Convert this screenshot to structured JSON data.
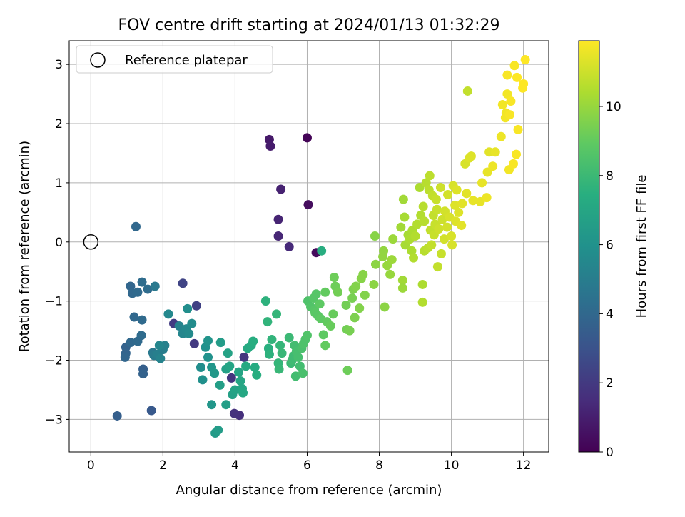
{
  "chart_data": {
    "type": "scatter",
    "title": "FOV centre drift starting at 2024/01/13 01:32:29",
    "xlabel": "Angular distance from reference (arcmin)",
    "ylabel": "Rotation from reference (arcmin)",
    "xlim": [
      -0.6,
      12.7
    ],
    "ylim": [
      -3.55,
      3.4
    ],
    "xticks": [
      0,
      2,
      4,
      6,
      8,
      10,
      12
    ],
    "yticks": [
      -3,
      -2,
      -1,
      0,
      1,
      2,
      3
    ],
    "grid": true,
    "legend": {
      "placement": "top-left",
      "entries": [
        "Reference platepar"
      ]
    },
    "reference_point": {
      "x": 0,
      "y": 0
    },
    "colorbar": {
      "label": "Hours from first FF file",
      "colormap": "viridis",
      "range": [
        0,
        11.9
      ],
      "ticks": [
        0,
        2,
        4,
        6,
        8,
        10
      ]
    },
    "points": [
      {
        "x": 4.95,
        "y": 1.73,
        "c": 0.8
      },
      {
        "x": 4.98,
        "y": 1.62,
        "c": 0.9
      },
      {
        "x": 6.0,
        "y": 1.76,
        "c": 0.1
      },
      {
        "x": 5.27,
        "y": 0.89,
        "c": 1.1
      },
      {
        "x": 6.03,
        "y": 0.63,
        "c": 0.4
      },
      {
        "x": 5.2,
        "y": 0.38,
        "c": 1.2
      },
      {
        "x": 5.2,
        "y": 0.1,
        "c": 1.3
      },
      {
        "x": 5.5,
        "y": -0.08,
        "c": 1.4
      },
      {
        "x": 6.25,
        "y": -0.18,
        "c": 0.3
      },
      {
        "x": 4.12,
        "y": -2.93,
        "c": 1.6
      },
      {
        "x": 3.98,
        "y": -2.9,
        "c": 1.7
      },
      {
        "x": 3.9,
        "y": -2.3,
        "c": 1.8
      },
      {
        "x": 4.25,
        "y": -1.95,
        "c": 1.9
      },
      {
        "x": 2.87,
        "y": -1.72,
        "c": 2.0
      },
      {
        "x": 2.3,
        "y": -1.38,
        "c": 2.1
      },
      {
        "x": 2.55,
        "y": -0.7,
        "c": 2.4
      },
      {
        "x": 2.93,
        "y": -1.08,
        "c": 2.3
      },
      {
        "x": 1.25,
        "y": 0.26,
        "c": 4.0
      },
      {
        "x": 0.73,
        "y": -2.94,
        "c": 3.6
      },
      {
        "x": 1.68,
        "y": -2.85,
        "c": 3.3
      },
      {
        "x": 1.1,
        "y": -0.75,
        "c": 3.9
      },
      {
        "x": 1.15,
        "y": -0.87,
        "c": 4.0
      },
      {
        "x": 1.3,
        "y": -0.85,
        "c": 4.1
      },
      {
        "x": 1.42,
        "y": -0.68,
        "c": 4.2
      },
      {
        "x": 1.58,
        "y": -0.8,
        "c": 4.2
      },
      {
        "x": 1.78,
        "y": -0.75,
        "c": 4.8
      },
      {
        "x": 1.2,
        "y": -1.27,
        "c": 4.0
      },
      {
        "x": 1.42,
        "y": -1.32,
        "c": 4.1
      },
      {
        "x": 1.4,
        "y": -1.58,
        "c": 4.2
      },
      {
        "x": 0.97,
        "y": -1.78,
        "c": 3.7
      },
      {
        "x": 0.97,
        "y": -1.88,
        "c": 3.8
      },
      {
        "x": 0.95,
        "y": -1.95,
        "c": 3.9
      },
      {
        "x": 1.1,
        "y": -1.7,
        "c": 4.0
      },
      {
        "x": 1.3,
        "y": -1.68,
        "c": 4.1
      },
      {
        "x": 1.45,
        "y": -2.15,
        "c": 3.6
      },
      {
        "x": 1.45,
        "y": -2.23,
        "c": 3.7
      },
      {
        "x": 1.72,
        "y": -1.87,
        "c": 4.8
      },
      {
        "x": 1.75,
        "y": -1.92,
        "c": 4.9
      },
      {
        "x": 1.85,
        "y": -1.9,
        "c": 5.1
      },
      {
        "x": 1.93,
        "y": -1.97,
        "c": 5.3
      },
      {
        "x": 2.0,
        "y": -1.82,
        "c": 5.0
      },
      {
        "x": 2.05,
        "y": -1.75,
        "c": 5.2
      },
      {
        "x": 1.9,
        "y": -1.75,
        "c": 5.4
      },
      {
        "x": 2.15,
        "y": -1.22,
        "c": 5.5
      },
      {
        "x": 2.45,
        "y": -1.42,
        "c": 5.3
      },
      {
        "x": 2.55,
        "y": -1.55,
        "c": 5.4
      },
      {
        "x": 2.65,
        "y": -1.47,
        "c": 5.5
      },
      {
        "x": 2.72,
        "y": -1.55,
        "c": 5.6
      },
      {
        "x": 2.8,
        "y": -1.38,
        "c": 5.7
      },
      {
        "x": 2.68,
        "y": -1.13,
        "c": 5.8
      },
      {
        "x": 3.05,
        "y": -2.12,
        "c": 5.8
      },
      {
        "x": 3.1,
        "y": -2.33,
        "c": 5.9
      },
      {
        "x": 3.18,
        "y": -1.78,
        "c": 6.0
      },
      {
        "x": 3.25,
        "y": -1.67,
        "c": 6.1
      },
      {
        "x": 3.25,
        "y": -1.95,
        "c": 6.0
      },
      {
        "x": 3.35,
        "y": -2.12,
        "c": 6.2
      },
      {
        "x": 3.43,
        "y": -2.22,
        "c": 6.3
      },
      {
        "x": 3.35,
        "y": -2.75,
        "c": 6.2
      },
      {
        "x": 3.45,
        "y": -3.23,
        "c": 6.4
      },
      {
        "x": 3.53,
        "y": -3.18,
        "c": 6.5
      },
      {
        "x": 3.58,
        "y": -2.42,
        "c": 6.6
      },
      {
        "x": 3.6,
        "y": -1.7,
        "c": 6.5
      },
      {
        "x": 3.75,
        "y": -2.15,
        "c": 6.7
      },
      {
        "x": 3.8,
        "y": -1.88,
        "c": 6.8
      },
      {
        "x": 3.75,
        "y": -2.75,
        "c": 6.6
      },
      {
        "x": 3.85,
        "y": -2.1,
        "c": 6.9
      },
      {
        "x": 3.93,
        "y": -2.58,
        "c": 6.7
      },
      {
        "x": 4.0,
        "y": -2.5,
        "c": 6.8
      },
      {
        "x": 4.1,
        "y": -2.2,
        "c": 6.9
      },
      {
        "x": 4.15,
        "y": -2.35,
        "c": 7.0
      },
      {
        "x": 4.2,
        "y": -2.48,
        "c": 7.0
      },
      {
        "x": 4.22,
        "y": -2.55,
        "c": 7.1
      },
      {
        "x": 4.3,
        "y": -2.1,
        "c": 7.2
      },
      {
        "x": 4.35,
        "y": -1.8,
        "c": 7.2
      },
      {
        "x": 4.45,
        "y": -1.75,
        "c": 7.3
      },
      {
        "x": 4.5,
        "y": -1.68,
        "c": 7.4
      },
      {
        "x": 4.55,
        "y": -2.12,
        "c": 7.3
      },
      {
        "x": 4.6,
        "y": -2.25,
        "c": 7.4
      },
      {
        "x": 4.85,
        "y": -1.0,
        "c": 7.6
      },
      {
        "x": 4.9,
        "y": -1.35,
        "c": 7.7
      },
      {
        "x": 4.93,
        "y": -1.8,
        "c": 7.5
      },
      {
        "x": 4.95,
        "y": -1.9,
        "c": 7.6
      },
      {
        "x": 5.02,
        "y": -1.65,
        "c": 7.7
      },
      {
        "x": 5.15,
        "y": -1.22,
        "c": 7.8
      },
      {
        "x": 5.2,
        "y": -2.05,
        "c": 7.8
      },
      {
        "x": 5.22,
        "y": -2.15,
        "c": 7.9
      },
      {
        "x": 5.25,
        "y": -1.75,
        "c": 7.8
      },
      {
        "x": 5.3,
        "y": -1.88,
        "c": 7.9
      },
      {
        "x": 5.5,
        "y": -1.62,
        "c": 8.0
      },
      {
        "x": 5.55,
        "y": -2.05,
        "c": 8.0
      },
      {
        "x": 5.58,
        "y": -2.0,
        "c": 8.1
      },
      {
        "x": 5.62,
        "y": -1.93,
        "c": 8.1
      },
      {
        "x": 5.65,
        "y": -1.75,
        "c": 8.2
      },
      {
        "x": 5.68,
        "y": -2.27,
        "c": 8.2
      },
      {
        "x": 5.7,
        "y": -1.85,
        "c": 8.3
      },
      {
        "x": 5.75,
        "y": -1.95,
        "c": 8.3
      },
      {
        "x": 5.8,
        "y": -2.1,
        "c": 8.2
      },
      {
        "x": 5.85,
        "y": -1.8,
        "c": 8.4
      },
      {
        "x": 5.88,
        "y": -2.22,
        "c": 8.4
      },
      {
        "x": 5.9,
        "y": -1.72,
        "c": 8.5
      },
      {
        "x": 5.95,
        "y": -1.65,
        "c": 8.5
      },
      {
        "x": 6.0,
        "y": -1.58,
        "c": 8.6
      },
      {
        "x": 6.02,
        "y": -1.0,
        "c": 8.5
      },
      {
        "x": 6.1,
        "y": -1.1,
        "c": 8.6
      },
      {
        "x": 6.18,
        "y": -0.95,
        "c": 8.7
      },
      {
        "x": 6.2,
        "y": -1.15,
        "c": 8.7
      },
      {
        "x": 6.22,
        "y": -1.2,
        "c": 8.8
      },
      {
        "x": 6.25,
        "y": -0.88,
        "c": 8.7
      },
      {
        "x": 6.3,
        "y": -1.25,
        "c": 8.8
      },
      {
        "x": 6.35,
        "y": -1.05,
        "c": 8.9
      },
      {
        "x": 6.38,
        "y": -1.3,
        "c": 8.9
      },
      {
        "x": 6.4,
        "y": -0.15,
        "c": 7.4
      },
      {
        "x": 6.45,
        "y": -1.57,
        "c": 8.9
      },
      {
        "x": 6.5,
        "y": -1.75,
        "c": 9.0
      },
      {
        "x": 6.5,
        "y": -0.85,
        "c": 9.0
      },
      {
        "x": 6.55,
        "y": -1.35,
        "c": 9.0
      },
      {
        "x": 6.65,
        "y": -1.42,
        "c": 9.1
      },
      {
        "x": 6.72,
        "y": -1.22,
        "c": 9.1
      },
      {
        "x": 6.75,
        "y": -0.6,
        "c": 9.2
      },
      {
        "x": 6.78,
        "y": -0.75,
        "c": 9.2
      },
      {
        "x": 6.85,
        "y": -0.85,
        "c": 9.3
      },
      {
        "x": 7.08,
        "y": -1.07,
        "c": 9.3
      },
      {
        "x": 7.1,
        "y": -1.48,
        "c": 9.3
      },
      {
        "x": 7.12,
        "y": -2.17,
        "c": 9.2
      },
      {
        "x": 7.18,
        "y": -1.5,
        "c": 9.4
      },
      {
        "x": 7.25,
        "y": -0.95,
        "c": 9.4
      },
      {
        "x": 7.28,
        "y": -0.8,
        "c": 9.5
      },
      {
        "x": 7.32,
        "y": -1.28,
        "c": 9.5
      },
      {
        "x": 7.35,
        "y": -0.75,
        "c": 9.6
      },
      {
        "x": 7.45,
        "y": -1.12,
        "c": 9.6
      },
      {
        "x": 7.5,
        "y": -0.62,
        "c": 9.7
      },
      {
        "x": 7.55,
        "y": -0.55,
        "c": 9.7
      },
      {
        "x": 7.6,
        "y": -0.9,
        "c": 9.6
      },
      {
        "x": 7.85,
        "y": -0.72,
        "c": 9.8
      },
      {
        "x": 7.9,
        "y": -0.38,
        "c": 9.8
      },
      {
        "x": 7.88,
        "y": 0.1,
        "c": 9.7
      },
      {
        "x": 8.1,
        "y": -0.25,
        "c": 9.9
      },
      {
        "x": 8.12,
        "y": -0.15,
        "c": 9.9
      },
      {
        "x": 8.15,
        "y": -1.1,
        "c": 9.8
      },
      {
        "x": 8.22,
        "y": -0.4,
        "c": 10.0
      },
      {
        "x": 8.3,
        "y": -0.55,
        "c": 10.0
      },
      {
        "x": 8.35,
        "y": -0.3,
        "c": 10.1
      },
      {
        "x": 8.38,
        "y": 0.05,
        "c": 10.1
      },
      {
        "x": 8.6,
        "y": 0.25,
        "c": 10.2
      },
      {
        "x": 8.65,
        "y": -0.65,
        "c": 10.2
      },
      {
        "x": 8.65,
        "y": -0.78,
        "c": 10.1
      },
      {
        "x": 8.67,
        "y": 0.72,
        "c": 10.2
      },
      {
        "x": 8.7,
        "y": 0.42,
        "c": 10.3
      },
      {
        "x": 8.72,
        "y": -0.05,
        "c": 10.3
      },
      {
        "x": 8.8,
        "y": 0.12,
        "c": 10.3
      },
      {
        "x": 8.85,
        "y": 0.05,
        "c": 10.4
      },
      {
        "x": 8.9,
        "y": -0.15,
        "c": 10.4
      },
      {
        "x": 8.92,
        "y": 0.2,
        "c": 10.4
      },
      {
        "x": 8.95,
        "y": -0.27,
        "c": 10.5
      },
      {
        "x": 9.0,
        "y": 0.1,
        "c": 10.5
      },
      {
        "x": 9.05,
        "y": 0.3,
        "c": 10.5
      },
      {
        "x": 9.12,
        "y": 0.92,
        "c": 10.4
      },
      {
        "x": 9.15,
        "y": 0.45,
        "c": 10.5
      },
      {
        "x": 9.2,
        "y": -0.72,
        "c": 10.4
      },
      {
        "x": 9.2,
        "y": -1.02,
        "c": 10.5
      },
      {
        "x": 9.22,
        "y": 0.6,
        "c": 10.6
      },
      {
        "x": 9.25,
        "y": 0.35,
        "c": 10.6
      },
      {
        "x": 9.25,
        "y": -0.15,
        "c": 10.6
      },
      {
        "x": 9.3,
        "y": 1.0,
        "c": 10.6
      },
      {
        "x": 9.35,
        "y": -0.1,
        "c": 10.7
      },
      {
        "x": 9.38,
        "y": 0.88,
        "c": 10.7
      },
      {
        "x": 9.4,
        "y": 1.12,
        "c": 10.7
      },
      {
        "x": 9.42,
        "y": 0.2,
        "c": 10.8
      },
      {
        "x": 9.45,
        "y": -0.05,
        "c": 10.8
      },
      {
        "x": 9.48,
        "y": 0.78,
        "c": 10.8
      },
      {
        "x": 9.5,
        "y": 0.45,
        "c": 10.8
      },
      {
        "x": 9.52,
        "y": 0.12,
        "c": 10.9
      },
      {
        "x": 9.55,
        "y": 0.3,
        "c": 10.9
      },
      {
        "x": 9.58,
        "y": 0.72,
        "c": 10.9
      },
      {
        "x": 9.6,
        "y": 0.55,
        "c": 10.9
      },
      {
        "x": 9.62,
        "y": -0.42,
        "c": 10.8
      },
      {
        "x": 9.65,
        "y": 0.22,
        "c": 11.0
      },
      {
        "x": 9.7,
        "y": 0.92,
        "c": 11.0
      },
      {
        "x": 9.72,
        "y": -0.2,
        "c": 10.9
      },
      {
        "x": 9.75,
        "y": 0.38,
        "c": 11.0
      },
      {
        "x": 9.8,
        "y": 0.05,
        "c": 11.1
      },
      {
        "x": 9.82,
        "y": 0.52,
        "c": 11.1
      },
      {
        "x": 9.88,
        "y": 0.25,
        "c": 11.1
      },
      {
        "x": 9.9,
        "y": 0.8,
        "c": 11.1
      },
      {
        "x": 9.95,
        "y": 0.42,
        "c": 11.2
      },
      {
        "x": 10.0,
        "y": 0.1,
        "c": 11.2
      },
      {
        "x": 10.02,
        "y": -0.05,
        "c": 11.2
      },
      {
        "x": 10.05,
        "y": 0.95,
        "c": 11.2
      },
      {
        "x": 10.1,
        "y": 0.62,
        "c": 11.3
      },
      {
        "x": 10.12,
        "y": 0.35,
        "c": 11.3
      },
      {
        "x": 10.15,
        "y": 0.88,
        "c": 11.3
      },
      {
        "x": 10.2,
        "y": 0.5,
        "c": 11.3
      },
      {
        "x": 10.28,
        "y": 0.28,
        "c": 11.4
      },
      {
        "x": 10.3,
        "y": 0.65,
        "c": 11.4
      },
      {
        "x": 10.38,
        "y": 1.32,
        "c": 11.2
      },
      {
        "x": 10.42,
        "y": 0.82,
        "c": 11.4
      },
      {
        "x": 10.45,
        "y": 2.55,
        "c": 10.8
      },
      {
        "x": 10.5,
        "y": 1.42,
        "c": 11.3
      },
      {
        "x": 10.55,
        "y": 1.45,
        "c": 11.3
      },
      {
        "x": 10.6,
        "y": 0.7,
        "c": 11.5
      },
      {
        "x": 10.8,
        "y": 0.68,
        "c": 11.5
      },
      {
        "x": 10.85,
        "y": 1.0,
        "c": 11.5
      },
      {
        "x": 10.98,
        "y": 0.75,
        "c": 11.6
      },
      {
        "x": 11.0,
        "y": 1.18,
        "c": 11.5
      },
      {
        "x": 11.05,
        "y": 1.52,
        "c": 11.4
      },
      {
        "x": 11.15,
        "y": 1.28,
        "c": 11.6
      },
      {
        "x": 11.22,
        "y": 1.52,
        "c": 11.5
      },
      {
        "x": 11.38,
        "y": 1.78,
        "c": 11.6
      },
      {
        "x": 11.42,
        "y": 2.32,
        "c": 11.7
      },
      {
        "x": 11.5,
        "y": 2.1,
        "c": 11.7
      },
      {
        "x": 11.52,
        "y": 2.18,
        "c": 11.7
      },
      {
        "x": 11.55,
        "y": 2.5,
        "c": 11.7
      },
      {
        "x": 11.55,
        "y": 2.82,
        "c": 11.8
      },
      {
        "x": 11.6,
        "y": 1.22,
        "c": 11.7
      },
      {
        "x": 11.62,
        "y": 2.15,
        "c": 11.8
      },
      {
        "x": 11.65,
        "y": 2.38,
        "c": 11.8
      },
      {
        "x": 11.72,
        "y": 1.32,
        "c": 11.8
      },
      {
        "x": 11.75,
        "y": 2.98,
        "c": 11.8
      },
      {
        "x": 11.8,
        "y": 1.48,
        "c": 11.8
      },
      {
        "x": 11.82,
        "y": 2.78,
        "c": 11.9
      },
      {
        "x": 11.85,
        "y": 1.9,
        "c": 11.8
      },
      {
        "x": 11.98,
        "y": 2.6,
        "c": 11.9
      },
      {
        "x": 12.0,
        "y": 2.67,
        "c": 11.9
      },
      {
        "x": 12.05,
        "y": 3.08,
        "c": 11.9
      }
    ]
  }
}
